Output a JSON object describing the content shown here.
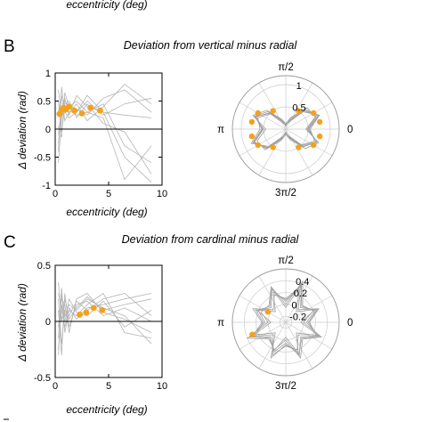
{
  "top_cut_xlabel": "eccentricity (deg)",
  "colors": {
    "dot": "#f5a11a",
    "gray": "#b4b4b4",
    "axis": "#000000",
    "grid": "#cccccc"
  },
  "chart_data": [
    {
      "panel": "B",
      "type": "line",
      "title": "Deviation from vertical minus radial",
      "xlabel": "eccentricity (deg)",
      "ylabel": "Δ deviation (rad)",
      "xlim": [
        0,
        10
      ],
      "ylim": [
        -1,
        1
      ],
      "xticks": [
        "0",
        "5",
        "10"
      ],
      "yticks": [
        "-1",
        "-0.5",
        "0",
        "0.5",
        "1"
      ],
      "zero_line": true,
      "series_gray": [
        {
          "x": [
            0.3,
            0.6,
            0.9,
            1.3,
            2,
            3,
            4.5,
            6.5,
            9
          ],
          "y": [
            -0.25,
            0.35,
            0.55,
            0.25,
            0.6,
            0.4,
            0.3,
            0.25,
            0.2
          ]
        },
        {
          "x": [
            0.3,
            0.6,
            0.9,
            1.3,
            2,
            3,
            4.5,
            6.5,
            9
          ],
          "y": [
            0.05,
            -0.15,
            0.65,
            0.4,
            0.5,
            0.3,
            0.45,
            -0.3,
            -0.6
          ]
        },
        {
          "x": [
            0.3,
            0.6,
            0.9,
            1.3,
            2,
            3,
            4.5,
            6.5,
            9
          ],
          "y": [
            -0.4,
            0.75,
            0.3,
            0.45,
            0.3,
            0.5,
            0.25,
            0.45,
            0.55
          ]
        },
        {
          "x": [
            0.3,
            0.6,
            0.9,
            1.3,
            2,
            3,
            4.5,
            6.5,
            9
          ],
          "y": [
            0.5,
            -0.05,
            0.4,
            0.3,
            0.35,
            0.25,
            0.55,
            0.7,
            0.3
          ]
        },
        {
          "x": [
            0.3,
            0.6,
            0.9,
            1.3,
            2,
            3,
            4.5,
            6.5,
            9
          ],
          "y": [
            -0.6,
            0.2,
            0.45,
            0.5,
            0.2,
            0.45,
            0.1,
            -0.05,
            -0.8
          ]
        },
        {
          "x": [
            0.3,
            0.6,
            0.9,
            1.3,
            2,
            3,
            4.5,
            6.5,
            9
          ],
          "y": [
            0.3,
            0.6,
            0.15,
            0.3,
            0.45,
            0.15,
            0.4,
            0.8,
            0.45
          ]
        },
        {
          "x": [
            0.3,
            0.6,
            0.9,
            1.3,
            2,
            3,
            4.5,
            6.5,
            9
          ],
          "y": [
            -0.1,
            0.4,
            0.3,
            0.2,
            0.3,
            0.6,
            0.3,
            -0.5,
            -0.95
          ]
        },
        {
          "x": [
            0.3,
            0.6,
            0.9,
            1.3,
            2,
            3,
            4.5,
            6.5,
            9
          ],
          "y": [
            0.7,
            0.25,
            0.5,
            0.4,
            0.25,
            0.3,
            0.2,
            -0.9,
            -0.3
          ]
        }
      ],
      "points": {
        "x": [
          0.4,
          0.6,
          0.8,
          1.0,
          1.3,
          1.8,
          2.5,
          3.3,
          4.2
        ],
        "y": [
          0.27,
          0.35,
          0.38,
          0.35,
          0.4,
          0.33,
          0.28,
          0.38,
          0.33
        ]
      },
      "polar": {
        "rticks": [
          "0.5",
          "1"
        ],
        "rmax": 1.2,
        "angle_labels": [
          "π/2",
          "π",
          "0",
          "3π/2"
        ],
        "loops": [
          [
            0.5,
            0.78,
            0.6,
            0.2,
            0.08,
            0.18,
            0.52,
            0.72,
            0.52,
            0.78,
            0.6,
            0.22,
            0.08,
            0.2,
            0.55,
            0.76
          ],
          [
            0.45,
            0.72,
            0.68,
            0.28,
            0.12,
            0.24,
            0.6,
            0.8,
            0.45,
            0.7,
            0.66,
            0.28,
            0.12,
            0.26,
            0.62,
            0.8
          ],
          [
            0.55,
            0.82,
            0.55,
            0.18,
            0.1,
            0.14,
            0.48,
            0.68,
            0.58,
            0.84,
            0.55,
            0.18,
            0.1,
            0.16,
            0.5,
            0.7
          ],
          [
            0.48,
            0.74,
            0.64,
            0.24,
            0.06,
            0.22,
            0.56,
            0.76,
            0.5,
            0.76,
            0.62,
            0.24,
            0.06,
            0.22,
            0.56,
            0.76
          ],
          [
            0.52,
            0.8,
            0.58,
            0.16,
            0.1,
            0.2,
            0.5,
            0.74,
            0.54,
            0.8,
            0.58,
            0.2,
            0.08,
            0.18,
            0.52,
            0.74
          ]
        ],
        "points": {
          "theta_deg": [
            12,
            30,
            55,
            125,
            150,
            168,
            192,
            210,
            235,
            305,
            330,
            348
          ],
          "r": [
            0.78,
            0.72,
            0.5,
            0.5,
            0.72,
            0.78,
            0.78,
            0.72,
            0.5,
            0.5,
            0.72,
            0.78
          ]
        }
      }
    },
    {
      "panel": "C",
      "type": "line",
      "title": "Deviation from cardinal minus radial",
      "xlabel": "eccentricity (deg)",
      "ylabel": "Δ deviation (rad)",
      "xlim": [
        0,
        10
      ],
      "ylim": [
        -0.5,
        0.5
      ],
      "xticks": [
        "0",
        "5",
        "10"
      ],
      "yticks": [
        "-0.5",
        "0",
        "0.5"
      ],
      "zero_line": true,
      "series_gray": [
        {
          "x": [
            0.3,
            0.6,
            0.9,
            1.3,
            2,
            3,
            4.5,
            6.5,
            9
          ],
          "y": [
            -0.3,
            0.25,
            0.05,
            0.15,
            0.1,
            0.2,
            0.12,
            0.05,
            -0.2
          ]
        },
        {
          "x": [
            0.3,
            0.6,
            0.9,
            1.3,
            2,
            3,
            4.5,
            6.5,
            9
          ],
          "y": [
            0.2,
            -0.2,
            0.1,
            0.05,
            0.18,
            0.1,
            0.2,
            0.25,
            0.05
          ]
        },
        {
          "x": [
            0.3,
            0.6,
            0.9,
            1.3,
            2,
            3,
            4.5,
            6.5,
            9
          ],
          "y": [
            -0.15,
            0.3,
            -0.1,
            0.1,
            0.05,
            0.15,
            0.25,
            -0.1,
            -0.15
          ]
        },
        {
          "x": [
            0.3,
            0.6,
            0.9,
            1.3,
            2,
            3,
            4.5,
            6.5,
            9
          ],
          "y": [
            0.35,
            0.0,
            0.2,
            0.02,
            0.12,
            0.22,
            0.1,
            0.15,
            0.2
          ]
        },
        {
          "x": [
            0.3,
            0.6,
            0.9,
            1.3,
            2,
            3,
            4.5,
            6.5,
            9
          ],
          "y": [
            -0.25,
            0.15,
            0.0,
            0.2,
            0.08,
            0.05,
            0.18,
            -0.05,
            0.1
          ]
        },
        {
          "x": [
            0.3,
            0.6,
            0.9,
            1.3,
            2,
            3,
            4.5,
            6.5,
            9
          ],
          "y": [
            0.1,
            -0.3,
            0.25,
            -0.05,
            0.15,
            0.18,
            0.05,
            0.12,
            0.0
          ]
        },
        {
          "x": [
            0.3,
            0.6,
            0.9,
            1.3,
            2,
            3,
            4.5,
            6.5,
            9
          ],
          "y": [
            0.25,
            0.1,
            -0.05,
            0.12,
            0.02,
            0.12,
            0.15,
            0.2,
            0.25
          ]
        },
        {
          "x": [
            0.3,
            0.6,
            0.9,
            1.3,
            2,
            3,
            4.5,
            6.5,
            9
          ],
          "y": [
            -0.05,
            0.2,
            0.15,
            -0.1,
            0.2,
            0.25,
            0.08,
            0.02,
            -0.1
          ]
        }
      ],
      "points": {
        "x": [
          2.3,
          2.9,
          3.6,
          4.4
        ],
        "y": [
          0.06,
          0.08,
          0.12,
          0.1
        ]
      },
      "polar": {
        "rticks": [
          "-0.2",
          "0",
          "0.2",
          "0.4"
        ],
        "rmin": -0.3,
        "rmax": 0.6,
        "angle_labels": [
          "π/2",
          "π",
          "0",
          "3π/2"
        ],
        "loops": [
          [
            0.05,
            0.25,
            0.05,
            0.4,
            0.05,
            0.3,
            0.05,
            0.2,
            0.05,
            0.35,
            0.05,
            0.25,
            0.05,
            0.3,
            0.05,
            0.3
          ],
          [
            0.1,
            0.3,
            0.0,
            0.35,
            0.1,
            0.2,
            0.0,
            0.3,
            0.1,
            0.3,
            0.0,
            0.3,
            0.1,
            0.2,
            0.0,
            0.25
          ],
          [
            0.0,
            0.2,
            0.1,
            0.45,
            0.0,
            0.35,
            0.1,
            0.15,
            0.0,
            0.4,
            0.1,
            0.2,
            0.0,
            0.35,
            0.1,
            0.35
          ],
          [
            0.08,
            0.28,
            -0.05,
            0.3,
            0.08,
            0.25,
            -0.05,
            0.25,
            0.08,
            0.25,
            -0.05,
            0.35,
            0.08,
            0.25,
            -0.05,
            0.28
          ],
          [
            -0.05,
            0.22,
            0.08,
            0.38,
            -0.05,
            0.32,
            0.08,
            0.22,
            -0.05,
            0.32,
            0.08,
            0.22,
            -0.05,
            0.28,
            0.08,
            0.32
          ]
        ],
        "points": {
          "theta_deg": [
            150,
            200
          ],
          "r": [
            0.05,
            0.3
          ]
        }
      }
    }
  ]
}
